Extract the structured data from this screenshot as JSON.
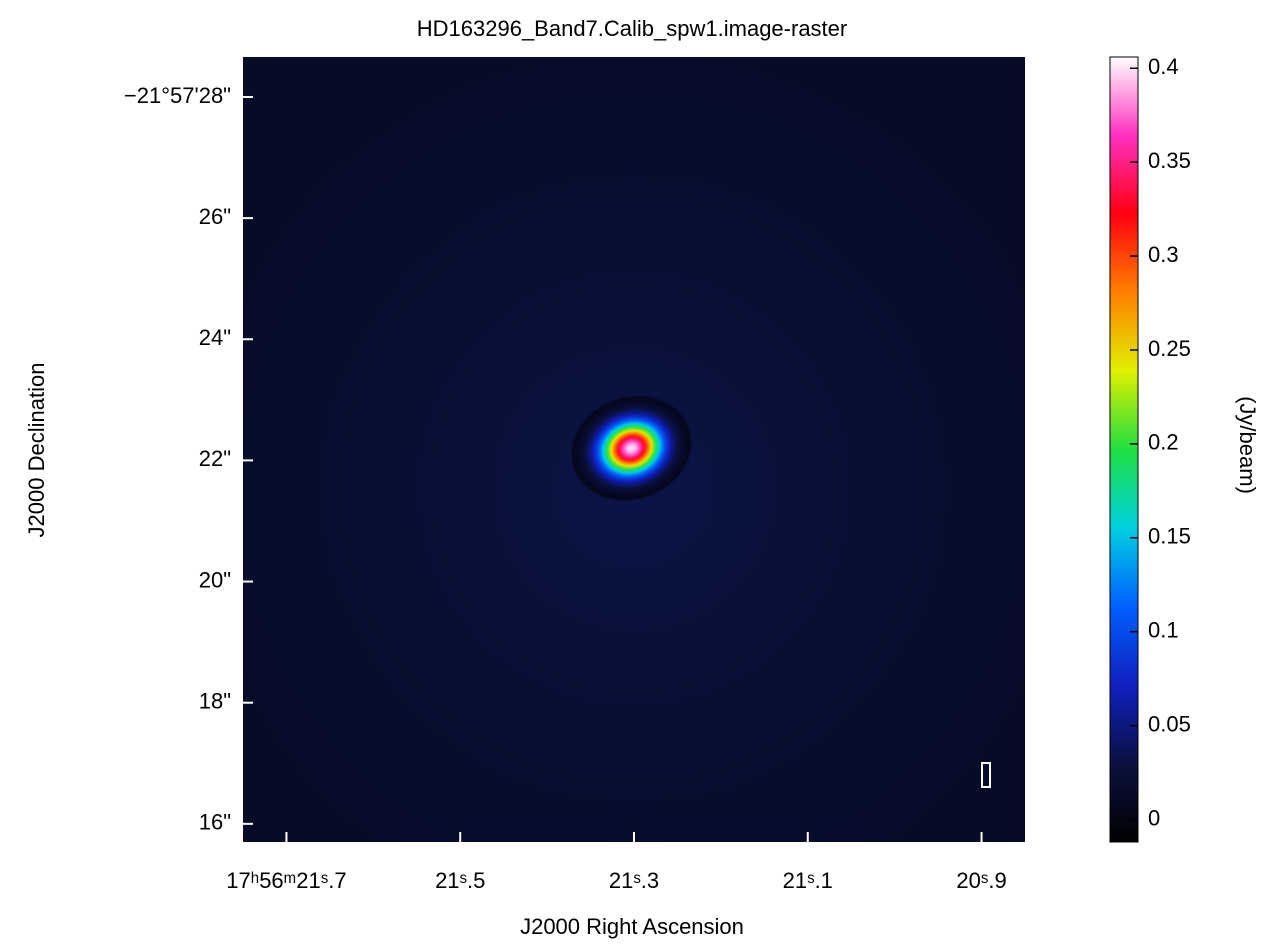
{
  "chart_data": {
    "type": "raster",
    "title": "HD163296_Band7.Calib_spw1.image-raster",
    "xlabel": "J2000 Right Ascension",
    "ylabel": "J2000 Declination",
    "colorbar_label": "(Jy/beam)",
    "xlim": [
      21.75,
      20.85
    ],
    "xticks": [
      {
        "value": 21.7,
        "label": "17ʰ56ᵐ21ˢ.7"
      },
      {
        "value": 21.5,
        "label": "21ˢ.5"
      },
      {
        "value": 21.3,
        "label": "21ˢ.3"
      },
      {
        "value": 21.1,
        "label": "21ˢ.1"
      },
      {
        "value": 20.9,
        "label": "20ˢ.9"
      }
    ],
    "ylim": [
      28.66,
      15.7
    ],
    "yticks": [
      {
        "value": 16,
        "label": "16\""
      },
      {
        "value": 18,
        "label": "18\""
      },
      {
        "value": 20,
        "label": "20\""
      },
      {
        "value": 22,
        "label": "22\""
      },
      {
        "value": 24,
        "label": "24\""
      },
      {
        "value": 26,
        "label": "26\""
      },
      {
        "value": 28,
        "label": "−21°57'28\""
      }
    ],
    "clim": [
      -0.012,
      0.406
    ],
    "cticks": [
      0,
      0.05,
      0.1,
      0.15,
      0.2,
      0.25,
      0.3,
      0.35,
      0.4
    ],
    "colormap": [
      "#000000",
      "#0a1040",
      "#1020c0",
      "#0060ff",
      "#00d0e0",
      "#20e040",
      "#e0f000",
      "#ff8000",
      "#ff0010",
      "#ff30c0",
      "#ffffff"
    ],
    "source": {
      "ra": 21.303,
      "dec": 22.2,
      "peak": 0.4
    }
  }
}
